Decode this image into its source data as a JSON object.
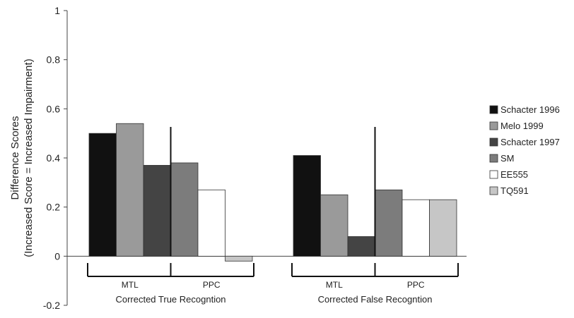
{
  "chart_data": {
    "type": "bar",
    "ylabel_lines": [
      "Difference Scores",
      "(Increased Score = Increased Impairment)"
    ],
    "xlabel": "",
    "ylim": [
      -0.2,
      1
    ],
    "yticks": [
      "-0.2",
      "0",
      "0.2",
      "0.4",
      "0.6",
      "0.8",
      "1"
    ],
    "grid": false,
    "legend_position": "right",
    "groups": [
      {
        "label": "Corrected True Recogntion",
        "regions": [
          {
            "label": "MTL",
            "series": [
              "Schacter 1996",
              "Melo 1999",
              "Schacter 1997"
            ]
          },
          {
            "label": "PPC",
            "series": [
              "SM",
              "EE555",
              "TQ591"
            ]
          }
        ]
      },
      {
        "label": "Corrected False Recogntion",
        "regions": [
          {
            "label": "MTL",
            "series": [
              "Schacter 1996",
              "Melo 1999",
              "Schacter 1997"
            ]
          },
          {
            "label": "PPC",
            "series": [
              "SM",
              "EE555",
              "TQ591"
            ]
          }
        ]
      }
    ],
    "series": [
      {
        "name": "Schacter 1996",
        "color": "#111111",
        "values": [
          0.5,
          0.41
        ]
      },
      {
        "name": "Melo 1999",
        "color": "#9a9a9a",
        "values": [
          0.54,
          0.25
        ]
      },
      {
        "name": "Schacter 1997",
        "color": "#444444",
        "values": [
          0.37,
          0.08
        ]
      },
      {
        "name": "SM",
        "color": "#7c7c7c",
        "values": [
          0.38,
          0.27
        ]
      },
      {
        "name": "EE555",
        "color": "#ffffff",
        "values": [
          0.27,
          0.23
        ]
      },
      {
        "name": "TQ591",
        "color": "#c6c6c6",
        "values": [
          -0.02,
          0.23
        ]
      }
    ]
  }
}
